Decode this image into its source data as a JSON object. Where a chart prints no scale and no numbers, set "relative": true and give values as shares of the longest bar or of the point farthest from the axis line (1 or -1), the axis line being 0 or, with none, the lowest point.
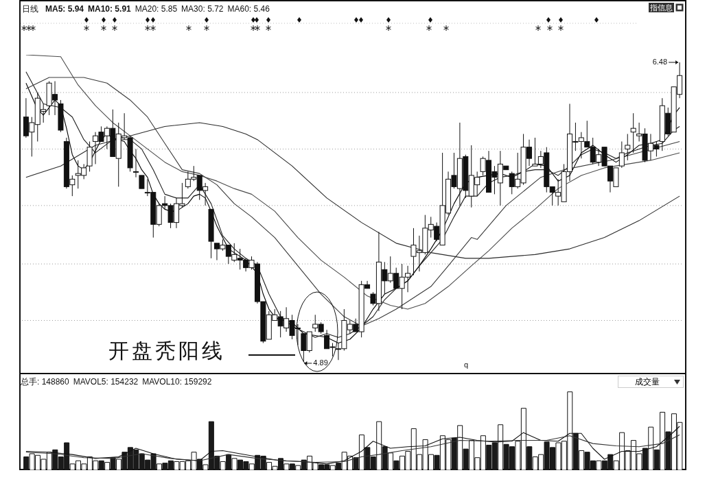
{
  "chart_data": [
    {
      "type": "candlestick",
      "title": "日线",
      "categories": [
        null,
        null,
        null,
        null,
        null,
        null,
        null,
        null,
        null,
        null,
        null,
        null,
        null,
        null,
        null,
        null,
        null,
        null,
        null,
        null,
        null,
        null,
        null,
        null,
        null,
        null,
        null,
        null,
        null,
        null,
        null,
        null,
        null,
        null,
        null,
        null,
        null,
        null,
        null,
        null,
        null,
        null,
        null,
        null,
        null,
        null,
        null,
        null,
        null,
        null,
        null,
        null,
        null,
        null,
        null,
        null,
        null,
        null,
        null,
        null,
        null,
        null,
        null,
        null,
        null,
        null,
        null,
        null,
        null,
        null,
        null,
        null,
        null,
        null,
        null,
        null,
        null,
        null,
        null,
        null,
        null,
        null,
        null,
        null,
        null,
        null,
        null,
        null,
        null,
        null,
        null,
        null,
        null,
        null,
        null,
        null,
        null,
        null,
        null,
        null,
        null,
        null,
        null,
        null,
        null,
        null,
        null,
        null,
        null,
        null,
        null,
        null,
        null,
        null
      ],
      "ohlc": [
        [
          6.19,
          6.29,
          6.08,
          6.09
        ],
        [
          6.11,
          6.19,
          5.98,
          6.16
        ],
        [
          6.15,
          6.32,
          6.06,
          6.29
        ],
        [
          6.22,
          6.26,
          6.16,
          6.23
        ],
        [
          6.25,
          6.38,
          6.2,
          6.37
        ],
        [
          6.31,
          6.38,
          6.2,
          6.28
        ],
        [
          6.26,
          6.28,
          6.11,
          6.12
        ],
        [
          6.06,
          6.08,
          5.81,
          5.82
        ],
        [
          5.83,
          5.88,
          5.77,
          5.86
        ],
        [
          5.88,
          5.96,
          5.81,
          5.89
        ],
        [
          5.88,
          5.94,
          5.86,
          5.92
        ],
        [
          5.93,
          6.06,
          5.9,
          6.03
        ],
        [
          6.06,
          6.11,
          5.94,
          6.09
        ],
        [
          6.11,
          6.14,
          6.06,
          6.06
        ],
        [
          6.09,
          6.14,
          6.02,
          6.13
        ],
        [
          6.13,
          6.23,
          5.98,
          5.98
        ],
        [
          5.97,
          6.16,
          5.82,
          6.1
        ],
        [
          6.08,
          6.21,
          6.07,
          6.09
        ],
        [
          6.08,
          6.09,
          5.9,
          5.92
        ],
        [
          5.9,
          6.02,
          5.87,
          5.9
        ],
        [
          5.88,
          5.88,
          5.81,
          5.81
        ],
        [
          5.79,
          5.86,
          5.77,
          5.79
        ],
        [
          5.79,
          5.79,
          5.55,
          5.62
        ],
        [
          5.62,
          5.73,
          5.61,
          5.72
        ],
        [
          5.73,
          5.77,
          5.7,
          5.72
        ],
        [
          5.72,
          5.73,
          5.6,
          5.63
        ],
        [
          5.63,
          5.76,
          5.6,
          5.73
        ],
        [
          5.72,
          5.84,
          5.71,
          5.73
        ],
        [
          5.82,
          5.9,
          5.81,
          5.86
        ],
        [
          5.86,
          5.93,
          5.85,
          5.87
        ],
        [
          5.88,
          5.88,
          5.75,
          5.8
        ],
        [
          5.8,
          5.84,
          5.72,
          5.82
        ],
        [
          5.7,
          5.7,
          5.44,
          5.53
        ],
        [
          5.52,
          5.52,
          5.43,
          5.49
        ],
        [
          5.49,
          5.54,
          5.48,
          5.51
        ],
        [
          5.51,
          5.51,
          5.41,
          5.45
        ],
        [
          5.43,
          5.52,
          5.42,
          5.46
        ],
        [
          5.44,
          5.49,
          5.38,
          5.43
        ],
        [
          5.43,
          5.44,
          5.37,
          5.39
        ],
        [
          5.39,
          5.45,
          5.38,
          5.43
        ],
        [
          5.41,
          5.42,
          5.2,
          5.21
        ],
        [
          5.21,
          5.21,
          4.99,
          5.0
        ],
        [
          5.01,
          5.16,
          5.01,
          5.14
        ],
        [
          5.11,
          5.17,
          5.11,
          5.14
        ],
        [
          5.13,
          5.16,
          5.02,
          5.08
        ],
        [
          5.07,
          5.18,
          5.05,
          5.12
        ],
        [
          5.11,
          5.14,
          5.01,
          5.03
        ],
        [
          5.07,
          5.09,
          4.98,
          5.07
        ],
        [
          5.04,
          5.04,
          4.89,
          4.95
        ],
        [
          4.95,
          5.05,
          4.94,
          5.05
        ],
        [
          5.07,
          5.14,
          5.05,
          5.09
        ],
        [
          5.09,
          5.1,
          5.04,
          5.05
        ],
        [
          5.03,
          5.06,
          4.96,
          4.96
        ],
        [
          4.97,
          4.99,
          4.92,
          4.97
        ],
        [
          4.96,
          4.99,
          4.9,
          4.96
        ],
        [
          4.96,
          5.17,
          4.95,
          5.11
        ],
        [
          5.06,
          5.11,
          5.04,
          5.09
        ],
        [
          5.09,
          5.12,
          5.05,
          5.05
        ],
        [
          5.05,
          5.32,
          5.02,
          5.3
        ],
        [
          5.3,
          5.32,
          5.28,
          5.28
        ],
        [
          5.25,
          5.26,
          5.19,
          5.2
        ],
        [
          5.2,
          5.58,
          5.16,
          5.42
        ],
        [
          5.38,
          5.42,
          5.25,
          5.32
        ],
        [
          5.32,
          5.45,
          5.31,
          5.36
        ],
        [
          5.36,
          5.39,
          5.28,
          5.28
        ],
        [
          5.28,
          5.41,
          5.17,
          5.34
        ],
        [
          5.34,
          5.4,
          5.26,
          5.36
        ],
        [
          5.45,
          5.6,
          5.35,
          5.51
        ],
        [
          5.47,
          5.56,
          5.37,
          5.48
        ],
        [
          5.47,
          5.67,
          5.46,
          5.6
        ],
        [
          5.59,
          5.66,
          5.55,
          5.62
        ],
        [
          5.61,
          5.63,
          5.53,
          5.54
        ],
        [
          5.51,
          6.0,
          5.51,
          5.72
        ],
        [
          5.68,
          5.9,
          5.67,
          5.86
        ],
        [
          5.88,
          6.0,
          5.81,
          5.82
        ],
        [
          5.81,
          6.16,
          5.72,
          5.97
        ],
        [
          5.98,
          5.99,
          5.76,
          5.8
        ],
        [
          5.77,
          6.04,
          5.71,
          5.88
        ],
        [
          5.83,
          5.9,
          5.77,
          5.87
        ],
        [
          5.9,
          5.98,
          5.88,
          5.97
        ],
        [
          5.96,
          6.01,
          5.79,
          5.79
        ],
        [
          5.9,
          5.93,
          5.78,
          5.87
        ],
        [
          5.84,
          6.01,
          5.72,
          5.94
        ],
        [
          5.93,
          5.93,
          5.91,
          5.91
        ],
        [
          5.89,
          5.9,
          5.78,
          5.82
        ],
        [
          5.82,
          6.0,
          5.81,
          5.86
        ],
        [
          5.84,
          6.1,
          5.83,
          6.03
        ],
        [
          6.03,
          6.07,
          5.93,
          5.97
        ],
        [
          5.93,
          6.08,
          5.93,
          5.94
        ],
        [
          5.94,
          6.01,
          5.92,
          5.98
        ],
        [
          6.0,
          6.03,
          5.79,
          5.82
        ],
        [
          5.82,
          5.82,
          5.72,
          5.79
        ],
        [
          5.77,
          5.86,
          5.72,
          5.79
        ],
        [
          5.74,
          5.94,
          5.74,
          5.9
        ],
        [
          5.9,
          6.26,
          5.85,
          6.1
        ],
        [
          6.06,
          6.16,
          6.01,
          6.06
        ],
        [
          6.06,
          6.11,
          5.97,
          6.08
        ],
        [
          6.06,
          6.17,
          6.03,
          6.03
        ],
        [
          6.03,
          6.08,
          5.94,
          5.95
        ],
        [
          5.95,
          6.02,
          5.93,
          5.99
        ],
        [
          6.03,
          6.03,
          5.93,
          5.93
        ],
        [
          5.93,
          5.93,
          5.79,
          5.85
        ],
        [
          5.82,
          5.92,
          5.82,
          5.92
        ],
        [
          5.93,
          6.06,
          5.92,
          6.0
        ],
        [
          6.02,
          6.1,
          5.96,
          6.04
        ],
        [
          6.11,
          6.21,
          6.0,
          6.13
        ],
        [
          6.09,
          6.16,
          6.06,
          6.1
        ],
        [
          6.1,
          6.13,
          5.95,
          5.96
        ],
        [
          6.01,
          6.1,
          5.96,
          6.05
        ],
        [
          6.04,
          6.06,
          5.98,
          6.02
        ],
        [
          6.06,
          6.29,
          6.01,
          6.25
        ],
        [
          6.21,
          6.24,
          6.09,
          6.1
        ],
        [
          6.11,
          6.35,
          6.11,
          6.35
        ],
        [
          6.31,
          6.48,
          6.29,
          6.41
        ]
      ],
      "series": [
        {
          "type": "line",
          "color": "#000000",
          "values": [
            6.37,
            null,
            6.23,
            6.2,
            null,
            6.28,
            6.25,
            6.13,
            5.99,
            5.93,
            5.91,
            5.95,
            6.01,
            6.07,
            6.1,
            6.08,
            6.07,
            6.06,
            6.01,
            5.97,
            5.91,
            5.87,
            5.78,
            5.73,
            5.7,
            5.69,
            5.69,
            5.71,
            5.73,
            5.77,
            5.78,
            5.76,
            5.69,
            5.61,
            5.55,
            5.49,
            5.47,
            5.45,
            5.43,
            null,
            5.36,
            5.25,
            5.17,
            5.13,
            5.11,
            5.11,
            5.1,
            null,
            5.04,
            null,
            5.03,
            null,
            5.02,
            null,
            4.99,
            null,
            5.01,
            null,
            5.07,
            null,
            5.17,
            null,
            5.25,
            null,
            5.28,
            null,
            5.32,
            null,
            5.4,
            null,
            5.49,
            null,
            5.59,
            null,
            5.73,
            null,
            5.84,
            null,
            5.87,
            null,
            5.88,
            null,
            5.89,
            null,
            5.87,
            null,
            5.9,
            null,
            5.94,
            null,
            5.93,
            null,
            5.85,
            null,
            5.88,
            null,
            6.0,
            null,
            6.04,
            null,
            5.99,
            null,
            5.95,
            null,
            5.99,
            null,
            6.04,
            null,
            6.05,
            null,
            6.07,
            null,
            6.2,
            6.24
          ]
        },
        {
          "type": "line",
          "color": "#1e1e1e",
          "values": [
            6.43,
            null,
            null,
            6.26,
            null,
            null,
            6.24,
            null,
            6.19,
            null,
            6.07,
            null,
            6.0,
            null,
            null,
            6.07,
            null,
            null,
            6.07,
            null,
            6.02,
            null,
            5.91,
            null,
            5.78,
            null,
            5.76,
            null,
            5.76,
            null,
            5.83,
            null,
            5.73,
            null,
            5.56,
            null,
            5.49,
            null,
            5.44,
            null,
            5.4,
            null,
            5.25,
            null,
            5.13,
            null,
            5.08,
            null,
            5.05,
            null,
            5.02,
            null,
            5.04,
            null,
            5.02,
            null,
            5.04,
            null,
            5.08,
            null,
            5.13,
            null,
            5.22,
            null,
            5.28,
            null,
            5.32,
            null,
            5.4,
            null,
            5.47,
            null,
            5.54,
            null,
            5.66,
            null,
            5.77,
            null,
            5.77,
            null,
            5.84,
            null,
            5.87,
            null,
            5.88,
            null,
            5.9,
            null,
            5.91,
            null,
            5.91,
            null,
            5.88,
            null,
            5.93,
            null,
            5.99,
            null,
            6.02,
            null,
            6.0,
            null,
            5.97,
            null,
            6.0,
            null,
            6.02,
            null,
            6.04,
            null,
            6.05,
            null,
            6.12,
            6.14
          ]
        },
        {
          "type": "line",
          "color": "#3a3a3a",
          "values": [
            6.34,
            null,
            null,
            null,
            6.4,
            null,
            null,
            null,
            null,
            null,
            6.4,
            null,
            null,
            null,
            6.37,
            null,
            null,
            null,
            6.28,
            null,
            null,
            6.19,
            null,
            null,
            6.05,
            null,
            null,
            5.91,
            null,
            null,
            5.89,
            null,
            null,
            5.83,
            null,
            null,
            5.73,
            null,
            null,
            5.66,
            null,
            null,
            null,
            5.55,
            null,
            null,
            null,
            5.4,
            null,
            null,
            null,
            5.25,
            null,
            null,
            null,
            5.13,
            null,
            null,
            5.08,
            null,
            null,
            5.12,
            null,
            null,
            5.17,
            null,
            null,
            5.23,
            null,
            null,
            5.29,
            null,
            null,
            5.4,
            null,
            null,
            null,
            5.55,
            5.54,
            null,
            null,
            null,
            null,
            5.72,
            null,
            null,
            null,
            null,
            null,
            5.87,
            null,
            null,
            null,
            5.91,
            null,
            null,
            null,
            null,
            null,
            null,
            null,
            5.96,
            null,
            null,
            null,
            null,
            null,
            null,
            null,
            null,
            null,
            null,
            null,
            6.06
          ]
        },
        {
          "type": "line",
          "color": "#4a4a4a",
          "values": [
            6.52,
            null,
            null,
            null,
            null,
            null,
            6.51,
            null,
            null,
            6.36,
            null,
            null,
            6.25,
            null,
            null,
            6.16,
            null,
            null,
            6.09,
            null,
            null,
            6.02,
            null,
            null,
            5.95,
            null,
            null,
            5.9,
            null,
            null,
            5.88,
            null,
            null,
            5.85,
            null,
            null,
            5.81,
            null,
            null,
            5.78,
            null,
            null,
            null,
            5.69,
            null,
            null,
            null,
            5.55,
            null,
            null,
            null,
            5.43,
            null,
            null,
            null,
            5.34,
            null,
            null,
            null,
            5.24,
            null,
            null,
            null,
            5.19,
            null,
            null,
            5.17,
            null,
            null,
            5.2,
            null,
            null,
            null,
            5.29,
            null,
            null,
            null,
            5.4,
            null,
            null,
            5.48,
            null,
            null,
            null,
            5.6,
            null,
            null,
            null,
            5.7,
            null,
            null,
            null,
            5.81,
            null,
            null,
            null,
            5.88,
            null,
            null,
            null,
            5.92,
            null,
            null,
            null,
            5.94,
            null,
            null,
            null,
            5.96,
            null,
            null,
            null,
            null,
            6.0
          ]
        },
        {
          "type": "line",
          "color": "#2a2a2a",
          "values": [
            5.87,
            null,
            null,
            null,
            null,
            null,
            5.93,
            null,
            null,
            null,
            null,
            null,
            6.04,
            null,
            null,
            null,
            null,
            null,
            6.09,
            null,
            null,
            null,
            null,
            null,
            6.14,
            null,
            null,
            null,
            null,
            null,
            6.16,
            null,
            null,
            null,
            6.14,
            null,
            null,
            null,
            6.1,
            null,
            6.07,
            null,
            null,
            null,
            null,
            null,
            5.93,
            null,
            null,
            null,
            null,
            null,
            5.76,
            null,
            null,
            null,
            null,
            null,
            5.63,
            null,
            null,
            null,
            null,
            null,
            5.52,
            null,
            null,
            null,
            null,
            null,
            5.47,
            null,
            null,
            null,
            null,
            null,
            5.44,
            null,
            null,
            null,
            5.44,
            null,
            null,
            null,
            null,
            null,
            null,
            null,
            5.46,
            null,
            null,
            null,
            null,
            null,
            5.49,
            null,
            null,
            null,
            null,
            null,
            5.55,
            null,
            null,
            null,
            null,
            null,
            5.64,
            null,
            null,
            null,
            null,
            null,
            null,
            5.77
          ]
        }
      ],
      "yticks": [
        {
          "value": 5.11,
          "label": null
        },
        {
          "value": 5.41,
          "label": null
        },
        {
          "value": 5.72,
          "label": null
        },
        {
          "value": 6.02,
          "label": null
        },
        {
          "value": 6.32,
          "label": null
        }
      ],
      "grid": "y",
      "annotations": [
        "MA5: 5.94",
        "MA10: 5.91",
        "MA20: 5.85",
        "MA30: 5.72",
        "MA60: 5.46",
        "指信息",
        "开盘秃阳线",
        "4.89",
        "6.48",
        "q"
      ]
    },
    {
      "type": "bar",
      "relative": true,
      "categories": [
        null,
        null,
        null,
        null,
        null,
        null,
        null,
        null,
        null,
        null,
        null,
        null,
        null,
        null,
        null,
        null,
        null,
        null,
        null,
        null,
        null,
        null,
        null,
        null,
        null,
        null,
        null,
        null,
        null,
        null,
        null,
        null,
        null,
        null,
        null,
        null,
        null,
        null,
        null,
        null,
        null,
        null,
        null,
        null,
        null,
        null,
        null,
        null,
        null,
        null,
        null,
        null,
        null,
        null,
        null,
        null,
        null,
        null,
        null,
        null,
        null,
        null,
        null,
        null,
        null,
        null,
        null,
        null,
        null,
        null,
        null,
        null,
        null,
        null,
        null,
        null,
        null,
        null,
        null,
        null,
        null,
        null,
        null,
        null,
        null,
        null,
        null,
        null,
        null,
        null,
        null,
        null,
        null,
        null,
        null,
        null,
        null,
        null,
        null,
        null,
        null,
        null,
        null,
        null,
        null,
        null,
        null,
        null,
        null,
        null,
        null,
        null,
        null,
        null
      ],
      "series": [
        {
          "type": "bar",
          "values": [
            0.17,
            0.21,
            0.19,
            0.14,
            0.23,
            0.26,
            0.17,
            0.35,
            0.08,
            0.12,
            0.08,
            0.17,
            0.12,
            0.12,
            0.1,
            0.16,
            0.14,
            0.23,
            0.29,
            0.26,
            0.21,
            0.13,
            0.21,
            0.08,
            0.09,
            0.12,
            0.11,
            0.11,
            0.12,
            0.23,
            0.14,
            0.07,
            0.62,
            0.18,
            0.11,
            0.2,
            0.15,
            0.13,
            0.11,
            0.08,
            0.19,
            0.18,
            0.1,
            0.05,
            0.15,
            0.08,
            0.08,
            0.06,
            0.13,
            0.18,
            0.1,
            0.07,
            0.07,
            0.06,
            0.09,
            0.23,
            0.18,
            0.16,
            0.45,
            0.29,
            0.17,
            0.62,
            0.3,
            0.22,
            0.12,
            0.18,
            0.24,
            0.53,
            0.2,
            0.39,
            0.2,
            0.19,
            0.44,
            0.39,
            0.41,
            0.57,
            0.27,
            0.38,
            0.16,
            0.44,
            0.32,
            0.35,
            0.58,
            0.33,
            0.3,
            0.37,
            0.79,
            0.3,
            0.17,
            0.2,
            0.36,
            0.29,
            0.35,
            0.37,
            1,
            0.47,
            0.25,
            0.23,
            0.12,
            0.12,
            0.12,
            0.2,
            0.12,
            0.48,
            0.25,
            0.38,
            0.21,
            0.28,
            0.55,
            0.26,
            0.74,
            0.49,
            0.72,
            0.61
          ],
          "colors": [
            "#1a1a1a",
            "#ffffff",
            "#ffffff",
            "#ffffff",
            "#ffffff",
            "#1a1a1a",
            "#1a1a1a",
            "#1a1a1a",
            "#ffffff",
            "#ffffff",
            "#ffffff",
            "#ffffff",
            "#ffffff",
            "#1a1a1a",
            "#ffffff",
            "#1a1a1a",
            "#ffffff",
            "#1a1a1a",
            "#1a1a1a",
            "#1a1a1a",
            "#1a1a1a",
            "#1a1a1a",
            "#1a1a1a",
            "#ffffff",
            "#1a1a1a",
            "#1a1a1a",
            "#ffffff",
            "#ffffff",
            "#ffffff",
            "#ffffff",
            "#1a1a1a",
            "#ffffff",
            "#1a1a1a",
            "#1a1a1a",
            "#ffffff",
            "#1a1a1a",
            "#ffffff",
            "#1a1a1a",
            "#1a1a1a",
            "#ffffff",
            "#1a1a1a",
            "#1a1a1a",
            "#ffffff",
            "#ffffff",
            "#1a1a1a",
            "#ffffff",
            "#1a1a1a",
            "#ffffff",
            "#1a1a1a",
            "#ffffff",
            "#ffffff",
            "#1a1a1a",
            "#1a1a1a",
            "#ffffff",
            "#1a1a1a",
            "#ffffff",
            "#ffffff",
            "#1a1a1a",
            "#ffffff",
            "#1a1a1a",
            "#1a1a1a",
            "#ffffff",
            "#1a1a1a",
            "#ffffff",
            "#1a1a1a",
            "#ffffff",
            "#ffffff",
            "#ffffff",
            "#ffffff",
            "#ffffff",
            "#ffffff",
            "#1a1a1a",
            "#ffffff",
            "#ffffff",
            "#1a1a1a",
            "#ffffff",
            "#1a1a1a",
            "#ffffff",
            "#ffffff",
            "#ffffff",
            "#1a1a1a",
            "#1a1a1a",
            "#ffffff",
            "#1a1a1a",
            "#1a1a1a",
            "#ffffff",
            "#ffffff",
            "#1a1a1a",
            "#ffffff",
            "#ffffff",
            "#1a1a1a",
            "#1a1a1a",
            "#ffffff",
            "#ffffff",
            "#ffffff",
            "#1a1a1a",
            "#ffffff",
            "#1a1a1a",
            "#1a1a1a",
            "#ffffff",
            "#1a1a1a",
            "#1a1a1a",
            "#ffffff",
            "#ffffff",
            "#ffffff",
            "#ffffff",
            "#ffffff",
            "#1a1a1a",
            "#ffffff",
            "#1a1a1a",
            "#ffffff",
            "#1a1a1a",
            "#ffffff",
            "#ffffff"
          ]
        },
        {
          "type": "line",
          "color": "#111111",
          "values": [
            0.24,
            null,
            null,
            null,
            0.23,
            null,
            null,
            null,
            0.2,
            null,
            null,
            null,
            0.15,
            null,
            null,
            null,
            0.17,
            null,
            null,
            0.28,
            null,
            null,
            0.21,
            null,
            null,
            null,
            0.14,
            null,
            null,
            null,
            0.12,
            null,
            0.24,
            null,
            0.25,
            null,
            null,
            0.21,
            null,
            null,
            0.17,
            null,
            null,
            null,
            0.12,
            null,
            null,
            null,
            0.11,
            null,
            null,
            null,
            0.08,
            null,
            null,
            0.12,
            null,
            null,
            0.24,
            null,
            0.37,
            null,
            null,
            0.28,
            null,
            null,
            0.3,
            null,
            null,
            0.31,
            null,
            null,
            0.4,
            null,
            null,
            0.42,
            null,
            null,
            0.38,
            null,
            null,
            0.36,
            null,
            null,
            0.37,
            null,
            0.48,
            null,
            null,
            0.38,
            null,
            null,
            0.37,
            null,
            0.47,
            null,
            0.47,
            null,
            0.28,
            null,
            0.14,
            null,
            null,
            0.24,
            null,
            null,
            0.24,
            null,
            null,
            0.3,
            null,
            null,
            0.49,
            0.56
          ]
        },
        {
          "type": "line",
          "color": "#333333",
          "values": [
            0.23,
            null,
            null,
            null,
            null,
            0.21,
            null,
            null,
            null,
            null,
            0.16,
            null,
            null,
            null,
            null,
            0.15,
            null,
            null,
            null,
            null,
            0.21,
            null,
            null,
            null,
            null,
            0.15,
            null,
            null,
            null,
            null,
            0.12,
            null,
            null,
            null,
            null,
            0.2,
            null,
            null,
            null,
            null,
            0.15,
            null,
            null,
            null,
            null,
            0.12,
            null,
            null,
            null,
            null,
            0.1,
            null,
            null,
            null,
            null,
            0.11,
            null,
            null,
            0.17,
            null,
            null,
            0.2,
            null,
            null,
            null,
            0.25,
            null,
            null,
            null,
            null,
            0.3,
            null,
            null,
            null,
            null,
            0.38,
            null,
            null,
            null,
            null,
            0.37,
            null,
            null,
            null,
            null,
            0.38,
            null,
            null,
            null,
            null,
            0.38,
            null,
            null,
            null,
            0.44,
            null,
            null,
            null,
            0.34,
            null,
            null,
            null,
            0.31,
            null,
            null,
            null,
            0.3,
            null,
            null,
            null,
            0.34,
            null,
            null,
            0.45
          ]
        }
      ],
      "annotations": [
        "总手: 148860",
        "MAVOL5: 154232",
        "MAVOL10: 159292",
        "成交量"
      ]
    }
  ]
}
